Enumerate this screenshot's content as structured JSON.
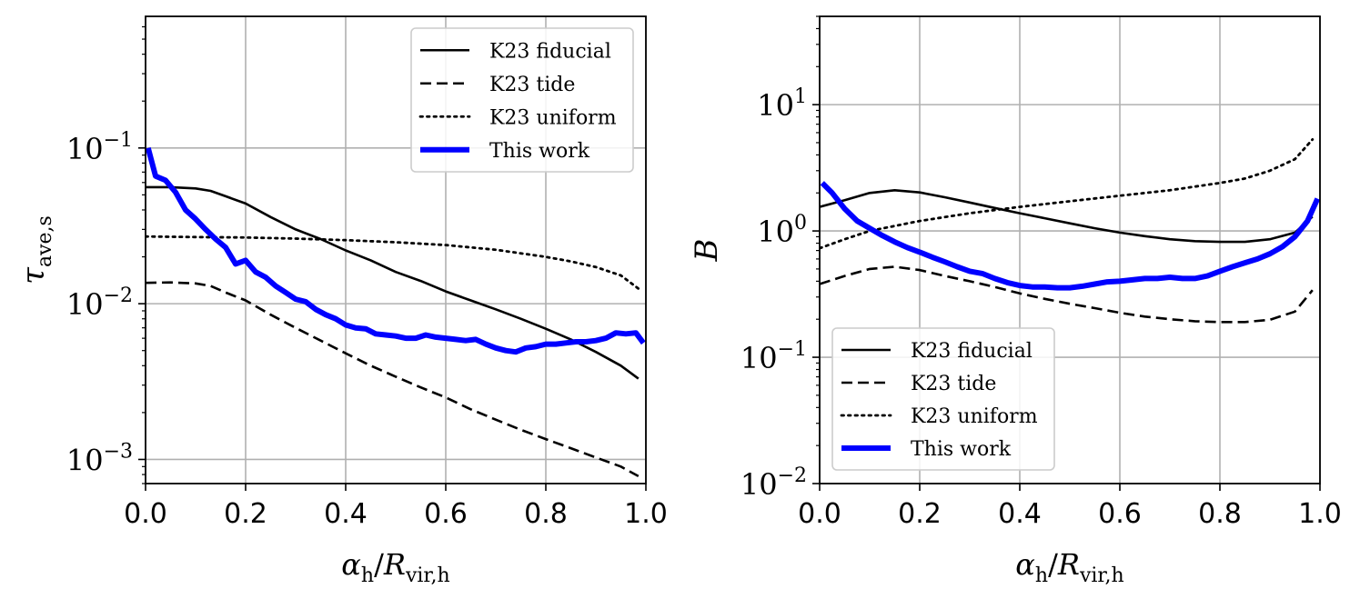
{
  "chart_data": [
    {
      "type": "line",
      "yscale": "log",
      "xlabel_main": "α",
      "xlabel_main_sub": "h",
      "xlabel_sep": "/",
      "xlabel_den": "R",
      "xlabel_den_sub": "vir,h",
      "ylabel_main": "τ",
      "ylabel_sub": "ave,s",
      "xlim": [
        0.0,
        1.0
      ],
      "ylim": [
        0.0007,
        0.7
      ],
      "x_ticks": [
        "0.0",
        "0.2",
        "0.4",
        "0.6",
        "0.8",
        "1.0"
      ],
      "y_ticks": [
        {
          "base": "10",
          "exp": "−3"
        },
        {
          "base": "10",
          "exp": "−2"
        },
        {
          "base": "10",
          "exp": "−1"
        }
      ],
      "grid": true,
      "legend_position": "top-right",
      "series": [
        {
          "name": "K23 fiducial",
          "style": "solid",
          "color": "#000000",
          "x": [
            0.0,
            0.05,
            0.1,
            0.13,
            0.16,
            0.2,
            0.25,
            0.3,
            0.35,
            0.4,
            0.45,
            0.5,
            0.55,
            0.6,
            0.65,
            0.7,
            0.75,
            0.8,
            0.85,
            0.9,
            0.95,
            0.985
          ],
          "y": [
            0.056,
            0.056,
            0.055,
            0.053,
            0.049,
            0.044,
            0.036,
            0.03,
            0.026,
            0.022,
            0.019,
            0.016,
            0.014,
            0.012,
            0.0105,
            0.0092,
            0.008,
            0.0069,
            0.0059,
            0.0049,
            0.004,
            0.0033
          ]
        },
        {
          "name": "K23 tide",
          "style": "dashed",
          "color": "#000000",
          "x": [
            0.0,
            0.05,
            0.1,
            0.13,
            0.16,
            0.2,
            0.25,
            0.3,
            0.35,
            0.4,
            0.45,
            0.5,
            0.55,
            0.6,
            0.65,
            0.7,
            0.75,
            0.8,
            0.85,
            0.9,
            0.95,
            0.985
          ],
          "y": [
            0.0136,
            0.0137,
            0.0135,
            0.013,
            0.0118,
            0.0105,
            0.0085,
            0.007,
            0.0058,
            0.0048,
            0.004,
            0.0034,
            0.0029,
            0.0025,
            0.0021,
            0.0018,
            0.00155,
            0.00135,
            0.00118,
            0.00103,
            0.0009,
            0.00078
          ]
        },
        {
          "name": "K23 uniform",
          "style": "dotted",
          "color": "#000000",
          "x": [
            0.0,
            0.1,
            0.2,
            0.3,
            0.4,
            0.5,
            0.6,
            0.7,
            0.8,
            0.85,
            0.9,
            0.95,
            0.985
          ],
          "y": [
            0.027,
            0.0268,
            0.0266,
            0.0262,
            0.0256,
            0.0248,
            0.0238,
            0.0222,
            0.02,
            0.0187,
            0.0172,
            0.0152,
            0.0125
          ]
        },
        {
          "name": "This work",
          "style": "solid-thick",
          "color": "#0000ff",
          "x": [
            0.005,
            0.02,
            0.04,
            0.06,
            0.08,
            0.1,
            0.12,
            0.14,
            0.16,
            0.18,
            0.2,
            0.22,
            0.24,
            0.26,
            0.28,
            0.3,
            0.32,
            0.34,
            0.36,
            0.38,
            0.4,
            0.42,
            0.44,
            0.46,
            0.48,
            0.5,
            0.52,
            0.54,
            0.56,
            0.58,
            0.6,
            0.62,
            0.64,
            0.66,
            0.68,
            0.7,
            0.72,
            0.74,
            0.76,
            0.78,
            0.8,
            0.82,
            0.84,
            0.86,
            0.88,
            0.9,
            0.92,
            0.94,
            0.96,
            0.98,
            0.995
          ],
          "y": [
            0.1,
            0.066,
            0.062,
            0.052,
            0.04,
            0.035,
            0.03,
            0.026,
            0.023,
            0.018,
            0.019,
            0.016,
            0.0148,
            0.013,
            0.0118,
            0.0107,
            0.0103,
            0.0092,
            0.0085,
            0.008,
            0.0073,
            0.007,
            0.0069,
            0.0064,
            0.0063,
            0.0062,
            0.006,
            0.006,
            0.0063,
            0.0061,
            0.006,
            0.0059,
            0.0058,
            0.0059,
            0.0055,
            0.0052,
            0.005,
            0.0049,
            0.0052,
            0.0053,
            0.0055,
            0.0055,
            0.0056,
            0.0057,
            0.0057,
            0.0058,
            0.006,
            0.0065,
            0.0064,
            0.0065,
            0.0056
          ]
        }
      ]
    },
    {
      "type": "line",
      "yscale": "log",
      "xlabel_main": "α",
      "xlabel_main_sub": "h",
      "xlabel_sep": "/",
      "xlabel_den": "R",
      "xlabel_den_sub": "vir,h",
      "ylabel_main": "B",
      "ylabel_sub": "",
      "xlim": [
        0.0,
        1.0
      ],
      "ylim": [
        0.01,
        50
      ],
      "x_ticks": [
        "0.0",
        "0.2",
        "0.4",
        "0.6",
        "0.8",
        "1.0"
      ],
      "y_ticks": [
        {
          "base": "10",
          "exp": "−2"
        },
        {
          "base": "10",
          "exp": "−1"
        },
        {
          "base": "10",
          "exp": "0"
        },
        {
          "base": "10",
          "exp": "1"
        }
      ],
      "grid": true,
      "legend_position": "bottom-left",
      "series": [
        {
          "name": "K23 fiducial",
          "style": "solid",
          "color": "#000000",
          "x": [
            0.0,
            0.05,
            0.1,
            0.15,
            0.2,
            0.25,
            0.3,
            0.35,
            0.4,
            0.45,
            0.5,
            0.55,
            0.6,
            0.65,
            0.7,
            0.75,
            0.8,
            0.85,
            0.9,
            0.95,
            0.985
          ],
          "y": [
            1.55,
            1.75,
            2.0,
            2.1,
            2.02,
            1.85,
            1.68,
            1.52,
            1.38,
            1.26,
            1.15,
            1.05,
            0.97,
            0.91,
            0.86,
            0.83,
            0.82,
            0.82,
            0.86,
            0.97,
            1.3
          ]
        },
        {
          "name": "K23 tide",
          "style": "dashed",
          "color": "#000000",
          "x": [
            0.0,
            0.05,
            0.1,
            0.15,
            0.2,
            0.25,
            0.3,
            0.35,
            0.4,
            0.45,
            0.5,
            0.55,
            0.6,
            0.65,
            0.7,
            0.75,
            0.8,
            0.85,
            0.9,
            0.95,
            0.985
          ],
          "y": [
            0.38,
            0.44,
            0.5,
            0.52,
            0.49,
            0.44,
            0.4,
            0.36,
            0.32,
            0.29,
            0.265,
            0.245,
            0.225,
            0.21,
            0.2,
            0.193,
            0.19,
            0.19,
            0.198,
            0.23,
            0.34
          ]
        },
        {
          "name": "K23 uniform",
          "style": "dotted",
          "color": "#000000",
          "x": [
            0.0,
            0.05,
            0.1,
            0.2,
            0.3,
            0.4,
            0.5,
            0.6,
            0.7,
            0.8,
            0.85,
            0.9,
            0.95,
            0.985
          ],
          "y": [
            0.73,
            0.86,
            1.0,
            1.2,
            1.38,
            1.55,
            1.72,
            1.9,
            2.1,
            2.4,
            2.6,
            3.0,
            3.7,
            5.3
          ]
        },
        {
          "name": "This work",
          "style": "solid-thick",
          "color": "#0000ff",
          "x": [
            0.005,
            0.025,
            0.05,
            0.075,
            0.1,
            0.125,
            0.15,
            0.175,
            0.2,
            0.225,
            0.25,
            0.275,
            0.3,
            0.325,
            0.35,
            0.375,
            0.4,
            0.425,
            0.45,
            0.475,
            0.5,
            0.525,
            0.55,
            0.575,
            0.6,
            0.625,
            0.65,
            0.675,
            0.7,
            0.725,
            0.75,
            0.775,
            0.8,
            0.825,
            0.85,
            0.875,
            0.9,
            0.925,
            0.95,
            0.975,
            0.995
          ],
          "y": [
            2.4,
            2.0,
            1.5,
            1.2,
            1.05,
            0.92,
            0.82,
            0.74,
            0.68,
            0.62,
            0.57,
            0.52,
            0.48,
            0.46,
            0.42,
            0.39,
            0.37,
            0.36,
            0.36,
            0.355,
            0.355,
            0.365,
            0.38,
            0.395,
            0.4,
            0.41,
            0.42,
            0.42,
            0.43,
            0.42,
            0.42,
            0.44,
            0.48,
            0.52,
            0.56,
            0.6,
            0.66,
            0.75,
            0.9,
            1.2,
            1.8
          ]
        }
      ]
    }
  ]
}
